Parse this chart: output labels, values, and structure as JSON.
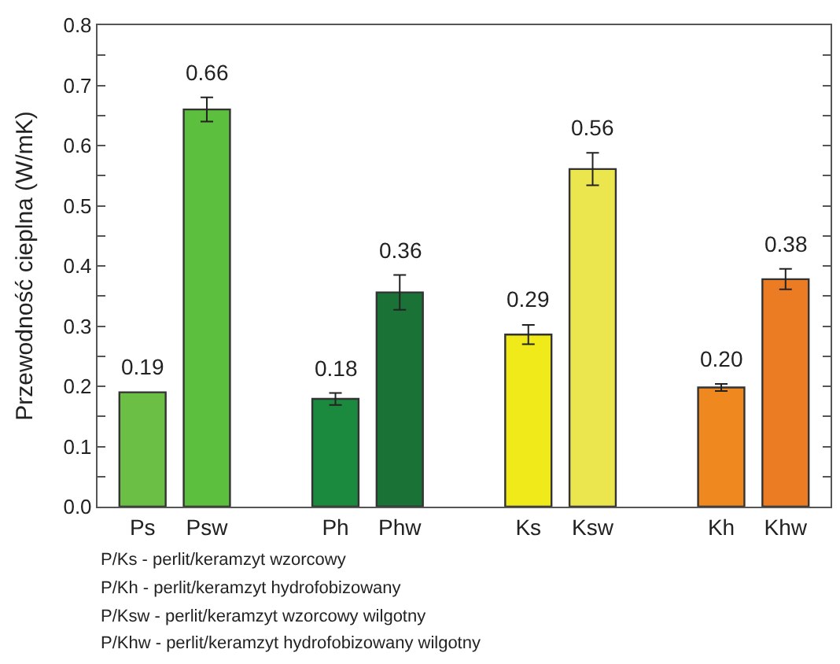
{
  "chart_data": {
    "type": "bar",
    "ylabel": "Przewodność cieplna (W/mK)",
    "categories": [
      "Ps",
      "Psw",
      null,
      "Ph",
      "Phw",
      null,
      "Ks",
      "Ksw",
      null,
      "Kh",
      "Khw"
    ],
    "values": [
      0.19,
      0.66,
      null,
      0.179,
      0.356,
      null,
      0.286,
      0.561,
      null,
      0.198,
      0.378
    ],
    "colors": [
      "#6bbf45",
      "#5cbf3e",
      null,
      "#1c8a3e",
      "#1a7236",
      null,
      "#f0ea1a",
      "#ece64e",
      null,
      "#f08820",
      "#ec7c24"
    ],
    "errors": [
      null,
      0.02,
      null,
      0.01,
      0.029,
      null,
      0.016,
      0.027,
      null,
      0.006,
      0.017
    ],
    "value_labels": [
      "0.19",
      "0.66",
      null,
      "0.18",
      "0.36",
      null,
      "0.29",
      "0.56",
      null,
      "0.20",
      "0.38"
    ],
    "ylim": [
      0,
      0.8
    ],
    "yticks": [
      {
        "value": 0,
        "label": "0.0"
      },
      {
        "value": 0.05,
        "label": null
      },
      0.1,
      {
        "value": 0.15,
        "label": null
      },
      0.2,
      {
        "value": 0.25,
        "label": null
      },
      0.3,
      {
        "value": 0.35,
        "label": null
      },
      0.4,
      {
        "value": 0.45,
        "label": null
      },
      0.5,
      {
        "value": 0.55,
        "label": null
      },
      0.6,
      {
        "value": 0.65,
        "label": null
      },
      0.7,
      {
        "value": 0.75,
        "label": null
      },
      0.8
    ],
    "annotations": [
      "P/Ks - perlit/keramzyt wzorcowy",
      "P/Kh - perlit/keramzyt hydrofobizowany",
      "P/Ksw - perlit/keramzyt wzorcowy wilgotny",
      "P/Khw - perlit/keramzyt hydrofobizowany wilgotny"
    ]
  }
}
